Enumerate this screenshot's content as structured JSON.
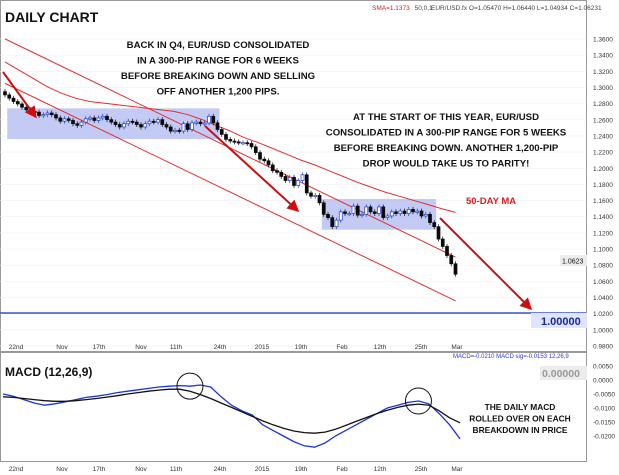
{
  "header": {
    "title": "DAILY CHART",
    "sma_label": "SMA=1.1373",
    "sma_params": "50,0,1",
    "ohlc_text": "EUR/USD.fx O=1.05470 H=1.06440 L=1.04934 C=1.06231"
  },
  "annotations": {
    "q4_note": [
      "BACK IN Q4, EUR/USD CONSOLIDATED",
      "IN A 300-PIP RANGE FOR 6 WEEKS",
      "BEFORE BREAKING DOWN AND SELLING",
      "OFF ANOTHER 1,200 PIPS."
    ],
    "year_note": [
      "AT THE START OF THIS YEAR, EUR/USD",
      "CONSOLIDATED IN A 300-PIP RANGE FOR 5 WEEKS",
      "BEFORE BREAKING DOWN. ANOTHER 1,200-PIP",
      "DROP WOULD TAKE US TO PARITY!"
    ],
    "ma_label": "50-DAY MA",
    "macd_note": [
      "THE DAILY MACD",
      "ROLLED OVER ON EACH",
      "BREAKDOWN IN PRICE"
    ]
  },
  "price_badges": {
    "current": "1.0623",
    "parity": "1.00000"
  },
  "macd_header": {
    "title": "MACD (12,26,9)",
    "readout": "MACD=-0.0210 MACD sig=-0.0153 12,26,9",
    "zero_badge": "0.00000"
  },
  "colors": {
    "bull_candle": "#1f3fbf",
    "bear_candle": "#0a0a0a",
    "channel": "#e03030",
    "arrow": "#cc1010",
    "range_box": "#aab4f0",
    "macd_line": "#1c34d4",
    "signal_line": "#111111",
    "parity_line": "#1030c8"
  },
  "chart_data": [
    {
      "type": "candlestick",
      "title": "DAILY CHART",
      "instrument": "EUR/USD",
      "ylim": [
        0.98,
        1.37
      ],
      "y_ticks": [
        "1.3600",
        "1.3400",
        "1.3200",
        "1.3000",
        "1.2800",
        "1.2600",
        "1.2400",
        "1.2200",
        "1.2000",
        "1.1800",
        "1.1600",
        "1.1400",
        "1.1200",
        "1.1000",
        "1.0800",
        "1.0600",
        "1.0400",
        "1.0200",
        "1.0000",
        "0.9800"
      ],
      "x_ticks": [
        "22nd",
        "Nov",
        "17th",
        "Nov",
        "11th",
        "24th",
        "2015",
        "19th",
        "Feb",
        "12th",
        "25th",
        "Mar"
      ],
      "closes": [
        1.28,
        1.276,
        1.272,
        1.269,
        1.265,
        1.262,
        1.26,
        1.259,
        1.255,
        1.256,
        1.258,
        1.256,
        1.252,
        1.248,
        1.251,
        1.249,
        1.245,
        1.243,
        1.247,
        1.251,
        1.252,
        1.249,
        1.252,
        1.254,
        1.25,
        1.247,
        1.244,
        1.241,
        1.245,
        1.248,
        1.247,
        1.244,
        1.241,
        1.245,
        1.248,
        1.247,
        1.25,
        1.244,
        1.241,
        1.236,
        1.237,
        1.236,
        1.245,
        1.238,
        1.246,
        1.247,
        1.245,
        1.246,
        1.254,
        1.246,
        1.238,
        1.232,
        1.226,
        1.224,
        1.223,
        1.222,
        1.222,
        1.221,
        1.217,
        1.21,
        1.202,
        1.2,
        1.195,
        1.188,
        1.186,
        1.181,
        1.176,
        1.18,
        1.17,
        1.176,
        1.183,
        1.161,
        1.157,
        1.158,
        1.149,
        1.135,
        1.131,
        1.12,
        1.128,
        1.138,
        1.136,
        1.136,
        1.145,
        1.134,
        1.135,
        1.144,
        1.138,
        1.136,
        1.144,
        1.131,
        1.133,
        1.138,
        1.136,
        1.139,
        1.136,
        1.141,
        1.138,
        1.139,
        1.133,
        1.135,
        1.125,
        1.12,
        1.105,
        1.096,
        1.085,
        1.075,
        1.0623
      ],
      "series": [
        {
          "name": "SMA",
          "values": [
            1.32,
            1.31,
            1.3,
            1.29,
            1.282,
            1.276,
            1.272,
            1.27,
            1.268,
            1.266,
            1.264,
            1.262,
            1.26,
            1.256,
            1.25,
            1.243,
            1.236,
            1.228,
            1.222,
            1.215,
            1.208,
            1.201,
            1.195,
            1.188,
            1.181,
            1.174,
            1.168,
            1.162,
            1.157,
            1.152,
            1.147,
            1.142,
            1.1373
          ]
        }
      ],
      "channel": {
        "upper": [
          [
            0,
            1.348
          ],
          [
            106,
            1.083
          ]
        ],
        "lower": [
          [
            0,
            1.294
          ],
          [
            106,
            1.03
          ]
        ]
      },
      "consolidation_ranges": [
        {
          "x": [
            1,
            50
          ],
          "y": [
            1.23,
            1.26
          ]
        },
        {
          "x": [
            75,
            101
          ],
          "y": [
            1.12,
            1.15
          ]
        }
      ],
      "arrows": [
        {
          "from": [
            0,
            1.299
          ],
          "to": [
            5,
            1.24
          ]
        },
        {
          "from": [
            49,
            1.231
          ],
          "to": [
            75,
            1.13
          ]
        },
        {
          "from": [
            100,
            1.112
          ],
          "to": [
            120,
            1.0
          ]
        }
      ],
      "parity_level": 1.0
    },
    {
      "type": "line",
      "title": "MACD (12,26,9)",
      "ylim": [
        -0.025,
        0.005
      ],
      "y_ticks": [
        "0.0050",
        "0.0000",
        "-0.0050",
        "-0.0100",
        "-0.0150",
        "-0.0200"
      ],
      "series": [
        {
          "name": "MACD",
          "values": [
            -0.005,
            -0.0058,
            -0.007,
            -0.0082,
            -0.009,
            -0.0085,
            -0.0078,
            -0.007,
            -0.0062,
            -0.0058,
            -0.0052,
            -0.0045,
            -0.004,
            -0.0035,
            -0.003,
            -0.0025,
            -0.0022,
            -0.002,
            -0.0022,
            -0.0018,
            -0.0025,
            -0.006,
            -0.009,
            -0.011,
            -0.0125,
            -0.016,
            -0.018,
            -0.02,
            -0.022,
            -0.0235,
            -0.024,
            -0.0225,
            -0.02,
            -0.018,
            -0.016,
            -0.014,
            -0.012,
            -0.01,
            -0.009,
            -0.008,
            -0.0075,
            -0.0085,
            -0.012,
            -0.016,
            -0.021
          ]
        },
        {
          "name": "signal",
          "values": [
            -0.006,
            -0.0062,
            -0.0066,
            -0.007,
            -0.0074,
            -0.0076,
            -0.0076,
            -0.0074,
            -0.007,
            -0.0066,
            -0.0061,
            -0.0056,
            -0.005,
            -0.0045,
            -0.004,
            -0.0036,
            -0.0033,
            -0.0033,
            -0.004,
            -0.0052,
            -0.0066,
            -0.0082,
            -0.0098,
            -0.0114,
            -0.013,
            -0.0146,
            -0.016,
            -0.0172,
            -0.0182,
            -0.0188,
            -0.019,
            -0.0186,
            -0.0176,
            -0.0162,
            -0.0148,
            -0.0134,
            -0.012,
            -0.0108,
            -0.0098,
            -0.009,
            -0.0086,
            -0.009,
            -0.011,
            -0.0135,
            -0.0153
          ]
        }
      ],
      "highlight_points": [
        18,
        40
      ]
    }
  ]
}
